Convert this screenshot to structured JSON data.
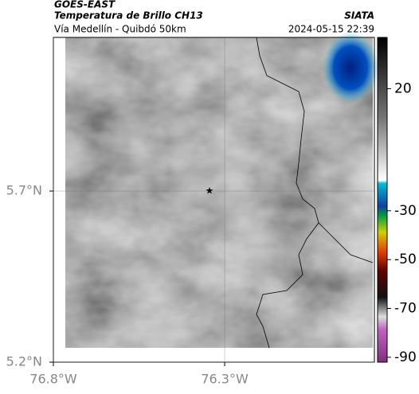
{
  "header": {
    "source": "GOES-EAST",
    "product": "Temperatura de Brillo CH13",
    "org": "SIATA",
    "route": "Vía Medellín - Quibdó 50km",
    "datetime": "2024-05-15 22:39"
  },
  "map": {
    "xlim": [
      -76.8,
      -75.863
    ],
    "ylim": [
      5.2,
      6.149
    ],
    "xticks": [
      {
        "value": -76.8,
        "label": "76.8°W"
      },
      {
        "value": -76.3,
        "label": "76.3°W"
      }
    ],
    "yticks": [
      {
        "value": 5.7,
        "label": "5.7°N"
      },
      {
        "value": 5.2,
        "label": "5.2°N"
      }
    ]
  },
  "colorbar": {
    "clim": [
      -92,
      41
    ],
    "ticks": [
      20,
      -30,
      -50,
      -70,
      -90
    ]
  }
}
